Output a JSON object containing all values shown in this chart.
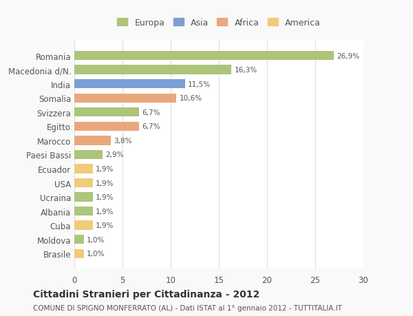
{
  "categories": [
    "Romania",
    "Macedonia d/N.",
    "India",
    "Somalia",
    "Svizzera",
    "Egitto",
    "Marocco",
    "Paesi Bassi",
    "Ecuador",
    "USA",
    "Ucraina",
    "Albania",
    "Cuba",
    "Moldova",
    "Brasile"
  ],
  "values": [
    26.9,
    16.3,
    11.5,
    10.6,
    6.7,
    6.7,
    3.8,
    2.9,
    1.9,
    1.9,
    1.9,
    1.9,
    1.9,
    1.0,
    1.0
  ],
  "labels": [
    "26,9%",
    "16,3%",
    "11,5%",
    "10,6%",
    "6,7%",
    "6,7%",
    "3,8%",
    "2,9%",
    "1,9%",
    "1,9%",
    "1,9%",
    "1,9%",
    "1,9%",
    "1,0%",
    "1,0%"
  ],
  "colors": [
    "#adc47a",
    "#adc47a",
    "#7a9fd4",
    "#e8a87c",
    "#adc47a",
    "#e8a87c",
    "#e8a87c",
    "#adc47a",
    "#f0cc7a",
    "#f0cc7a",
    "#adc47a",
    "#adc47a",
    "#f0cc7a",
    "#adc47a",
    "#f0cc7a"
  ],
  "continent": [
    "Europa",
    "Europa",
    "Asia",
    "Africa",
    "Europa",
    "Africa",
    "Africa",
    "Europa",
    "America",
    "America",
    "Europa",
    "Europa",
    "America",
    "Europa",
    "America"
  ],
  "legend_labels": [
    "Europa",
    "Asia",
    "Africa",
    "America"
  ],
  "legend_colors": [
    "#adc47a",
    "#7a9fd4",
    "#e8a87c",
    "#f0cc7a"
  ],
  "title": "Cittadini Stranieri per Cittadinanza - 2012",
  "subtitle": "COMUNE DI SPIGNO MONFERRATO (AL) - Dati ISTAT al 1° gennaio 2012 - TUTTITALIA.IT",
  "xlim": [
    0,
    30
  ],
  "xticks": [
    0,
    5,
    10,
    15,
    20,
    25,
    30
  ],
  "background_color": "#f9f9f9",
  "plot_background": "#ffffff",
  "grid_color": "#dddddd"
}
